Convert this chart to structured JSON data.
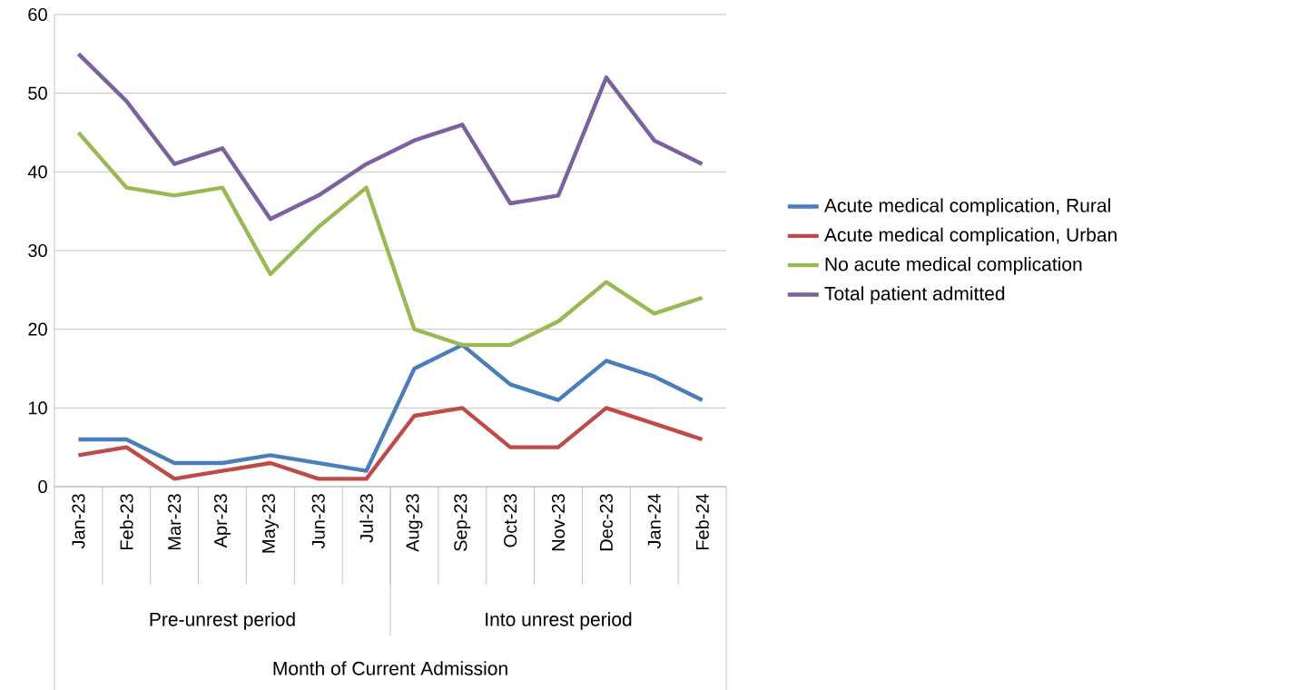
{
  "chart_data": {
    "type": "line",
    "categories": [
      "Jan-23",
      "Feb-23",
      "Mar-23",
      "Apr-23",
      "May-23",
      "Jun-23",
      "Jul-23",
      "Aug-23",
      "Sep-23",
      "Oct-23",
      "Nov-23",
      "Dec-23",
      "Jan-24",
      "Feb-24"
    ],
    "series": [
      {
        "name": "Acute medical complication, Rural",
        "color": "#4a7ebb",
        "values": [
          6,
          6,
          3,
          3,
          4,
          3,
          2,
          15,
          18,
          13,
          11,
          16,
          14,
          11
        ]
      },
      {
        "name": "Acute medical complication, Urban",
        "color": "#be4b48",
        "values": [
          4,
          5,
          1,
          2,
          3,
          1,
          1,
          9,
          10,
          5,
          5,
          10,
          8,
          6
        ]
      },
      {
        "name": "No acute medical complication",
        "color": "#98b954",
        "values": [
          45,
          38,
          37,
          38,
          27,
          33,
          38,
          20,
          18,
          18,
          21,
          26,
          22,
          24
        ]
      },
      {
        "name": "Total patient admitted",
        "color": "#7d60a0",
        "values": [
          55,
          49,
          41,
          43,
          34,
          37,
          41,
          44,
          46,
          36,
          37,
          52,
          44,
          41
        ]
      }
    ],
    "annotations": [
      "Pre-unrest period",
      "Into unrest period",
      "Month of Current Admission"
    ],
    "ylim": [
      0,
      60
    ],
    "yticks": [
      0,
      10,
      20,
      30,
      40,
      50,
      60
    ],
    "grid": "y",
    "legend": "right",
    "marker": "none",
    "line_style": "solid"
  }
}
